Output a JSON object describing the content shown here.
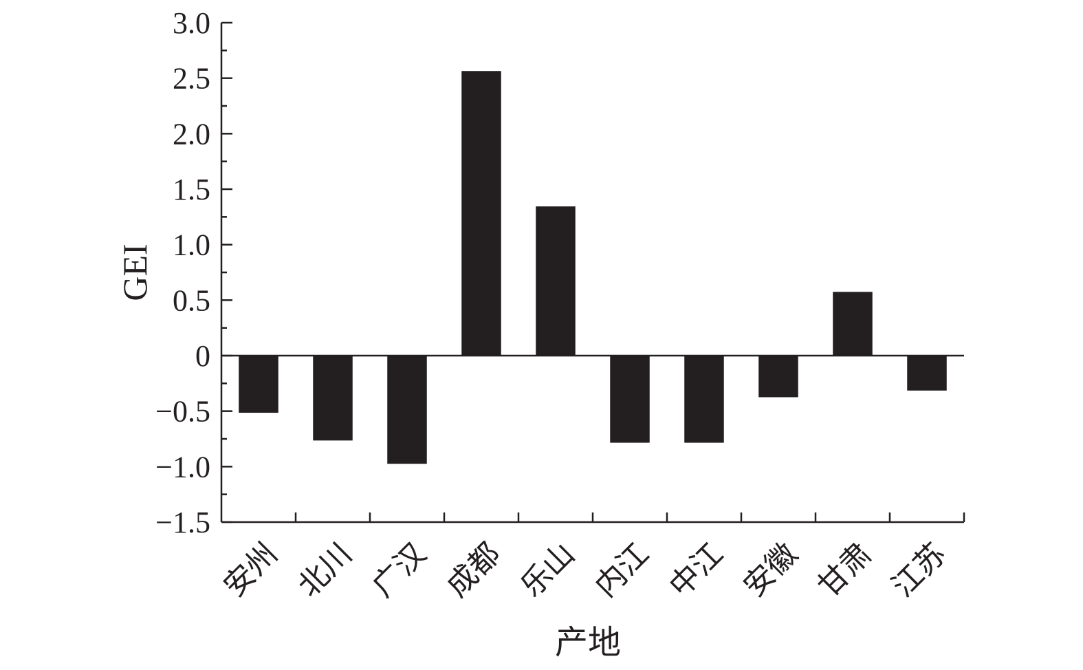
{
  "chart_data": {
    "type": "bar",
    "title": "",
    "xlabel": "产地",
    "ylabel": "GEI",
    "categories": [
      "安州",
      "北川",
      "广汉",
      "成都",
      "乐山",
      "内江",
      "中江",
      "安徽",
      "甘肃",
      "江苏"
    ],
    "values": [
      -0.51,
      -0.76,
      -0.97,
      2.56,
      1.34,
      -0.78,
      -0.78,
      -0.37,
      0.57,
      -0.31
    ],
    "ylim": [
      -1.5,
      3.0
    ],
    "yticks": [
      3.0,
      2.5,
      2.0,
      1.5,
      1.0,
      0.5,
      0,
      -0.5,
      -1.0,
      -1.5
    ],
    "ytick_labels": [
      "3.0",
      "2.5",
      "2.0",
      "1.5",
      "1.0",
      "0.5",
      "0",
      "−0.5",
      "−1.0",
      "−1.5"
    ],
    "grid": false,
    "legend": "none",
    "colors": {
      "bar": "#231f20",
      "axis": "#231f20",
      "text": "#231f20"
    }
  }
}
